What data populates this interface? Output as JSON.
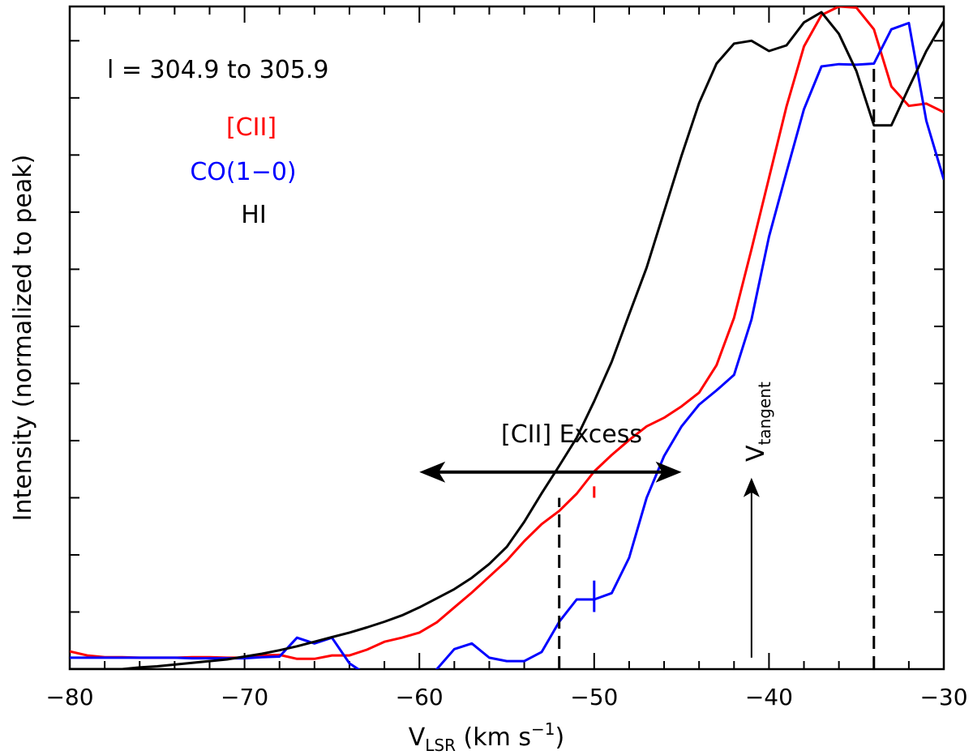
{
  "colors": {
    "cii": "#ff0000",
    "co": "#0000ff",
    "hi": "#000000"
  },
  "chart_data": {
    "type": "line",
    "xlim": [
      -80,
      -30
    ],
    "ylim": [
      0,
      1.16
    ],
    "x_ticks": [
      -80,
      -70,
      -60,
      -50,
      -40,
      -30
    ],
    "x_tick_labels": [
      "−80",
      "−70",
      "−60",
      "−50",
      "−40",
      "−30"
    ],
    "xlabel": {
      "base": "V",
      "sub": "LSR",
      "units": " (km s",
      "sup": "−1",
      "close": ")"
    },
    "ylabel": "Intensity (normalized to peak)",
    "region_label": "l = 304.9 to 305.9",
    "grid": false,
    "legend": {
      "placement": "top-left"
    },
    "series": [
      {
        "name": "[CII]",
        "color": "#ff0000",
        "x": [
          -80,
          -79,
          -78,
          -77,
          -76,
          -75,
          -74,
          -73,
          -72,
          -71,
          -70,
          -69,
          -68,
          -67,
          -66,
          -65,
          -64,
          -63,
          -62,
          -61,
          -60,
          -59,
          -58,
          -57,
          -56,
          -55,
          -54,
          -53,
          -52,
          -51,
          -50,
          -49,
          -48,
          -47,
          -46,
          -45,
          -44,
          -43,
          -42,
          -41,
          -40,
          -39,
          -38,
          -37,
          -36,
          -35,
          -34,
          -33,
          -32,
          -31,
          -30
        ],
        "values": [
          0.031,
          0.024,
          0.021,
          0.021,
          0.02,
          0.02,
          0.02,
          0.021,
          0.021,
          0.02,
          0.02,
          0.024,
          0.025,
          0.018,
          0.018,
          0.024,
          0.024,
          0.034,
          0.048,
          0.055,
          0.064,
          0.082,
          0.108,
          0.134,
          0.162,
          0.19,
          0.224,
          0.254,
          0.277,
          0.307,
          0.346,
          0.375,
          0.401,
          0.425,
          0.44,
          0.46,
          0.484,
          0.532,
          0.615,
          0.735,
          0.86,
          0.985,
          1.09,
          1.145,
          1.16,
          1.158,
          1.12,
          1.02,
          0.986,
          0.99,
          0.975
        ]
      },
      {
        "name": "CO(1−0)",
        "color": "#0000ff",
        "x": [
          -80,
          -79,
          -78,
          -77,
          -76,
          -75,
          -74,
          -73,
          -72,
          -71,
          -70,
          -69,
          -68,
          -67,
          -66,
          -65,
          -64,
          -63,
          -62,
          -61,
          -60,
          -59,
          -58,
          -57,
          -56,
          -55,
          -54,
          -53,
          -52,
          -51,
          -50,
          -49,
          -48,
          -47,
          -46,
          -45,
          -44,
          -43,
          -42,
          -41,
          -40,
          -39,
          -38,
          -37,
          -36,
          -35,
          -34,
          -33,
          -32,
          -31,
          -30
        ],
        "values": [
          0.02,
          0.02,
          0.02,
          0.02,
          0.02,
          0.02,
          0.02,
          0.019,
          0.019,
          0.019,
          0.019,
          0.021,
          0.022,
          0.055,
          0.045,
          0.055,
          0.01,
          -0.01,
          -0.035,
          -0.035,
          -0.035,
          0.0,
          0.035,
          0.045,
          0.02,
          0.014,
          0.014,
          0.03,
          0.083,
          0.122,
          0.122,
          0.133,
          0.195,
          0.3,
          0.373,
          0.425,
          0.463,
          0.488,
          0.515,
          0.612,
          0.757,
          0.87,
          0.98,
          1.055,
          1.059,
          1.058,
          1.06,
          1.12,
          1.131,
          0.96,
          0.857
        ]
      },
      {
        "name": "HI",
        "color": "#000000",
        "x": [
          -80,
          -79,
          -78,
          -77,
          -76,
          -75,
          -74,
          -73,
          -72,
          -71,
          -70,
          -69,
          -68,
          -67,
          -66,
          -65,
          -64,
          -63,
          -62,
          -61,
          -60,
          -59,
          -58,
          -57,
          -56,
          -55,
          -54,
          -53,
          -52,
          -51,
          -50,
          -49,
          -48,
          -47,
          -46,
          -45,
          -44,
          -43,
          -42,
          -41,
          -40,
          -39,
          -38,
          -37,
          -36,
          -35,
          -34,
          -33,
          -32,
          -31,
          -30
        ],
        "values": [
          0.0,
          0.0,
          0.0,
          0.0,
          0.003,
          0.005,
          0.008,
          0.011,
          0.014,
          0.017,
          0.022,
          0.027,
          0.033,
          0.04,
          0.048,
          0.056,
          0.064,
          0.073,
          0.083,
          0.094,
          0.108,
          0.124,
          0.14,
          0.16,
          0.184,
          0.214,
          0.258,
          0.308,
          0.356,
          0.405,
          0.469,
          0.538,
          0.621,
          0.703,
          0.801,
          0.899,
          0.991,
          1.06,
          1.095,
          1.1,
          1.082,
          1.092,
          1.132,
          1.15,
          1.112,
          1.047,
          0.952,
          0.952,
          1.018,
          1.082,
          1.134
        ]
      }
    ],
    "annotations": {
      "excess_label": "[CII] Excess",
      "tangent_label": {
        "base": "V",
        "sub": "tangent"
      },
      "excess_arrow": {
        "x_from": -60,
        "x_to": -45,
        "y": 0.345
      },
      "tangent_arrow": {
        "x": -41,
        "y_from": 0.02,
        "y_to": 0.335
      },
      "dashed_lines": [
        {
          "x": -52,
          "y_from": 0,
          "y_to": 0.3
        },
        {
          "x": -34,
          "y_from": 0,
          "y_to": 1.06
        }
      ],
      "error_bars": [
        {
          "x": -50,
          "y_from": 0.3,
          "y_to": 0.32,
          "color": "#ff0000"
        },
        {
          "x": -50,
          "y_from": 0.1,
          "y_to": 0.155,
          "color": "#0000ff"
        }
      ]
    }
  }
}
